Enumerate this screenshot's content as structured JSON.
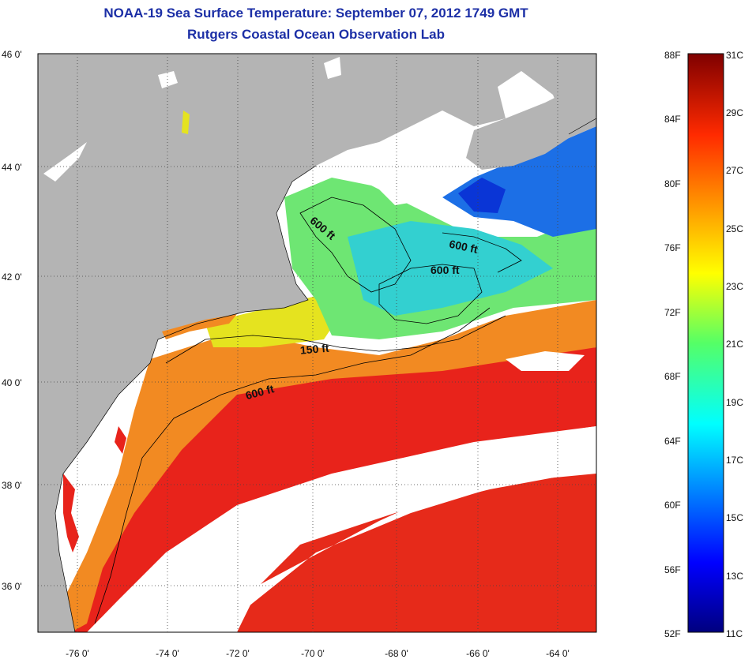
{
  "header": {
    "title": "NOAA-19 Sea Surface Temperature:  September 07, 2012 1749 GMT",
    "subtitle": "Rutgers Coastal Ocean Observation Lab"
  },
  "axes": {
    "x_ticks": [
      "-76 0'",
      "-74 0'",
      "-72 0'",
      "-70 0'",
      "-68 0'",
      "-66 0'",
      "-64 0'"
    ],
    "y_ticks": [
      "46 0'",
      "44 0'",
      "42 0'",
      "40 0'",
      "38 0'",
      "36 0'"
    ]
  },
  "contours": [
    "600 ft",
    "600 ft",
    "600 ft",
    "150 ft",
    "600 ft"
  ],
  "colorbar": {
    "f_labels": [
      "88F",
      "84F",
      "80F",
      "76F",
      "72F",
      "68F",
      "64F",
      "60F",
      "56F",
      "52F"
    ],
    "c_labels": [
      "31C",
      "29C",
      "27C",
      "25C",
      "23C",
      "21C",
      "19C",
      "17C",
      "15C",
      "13C",
      "11C"
    ]
  },
  "colors": {
    "land": "#b4b4b4",
    "cloud": "#ffffff",
    "title": "#1c2fa6"
  }
}
